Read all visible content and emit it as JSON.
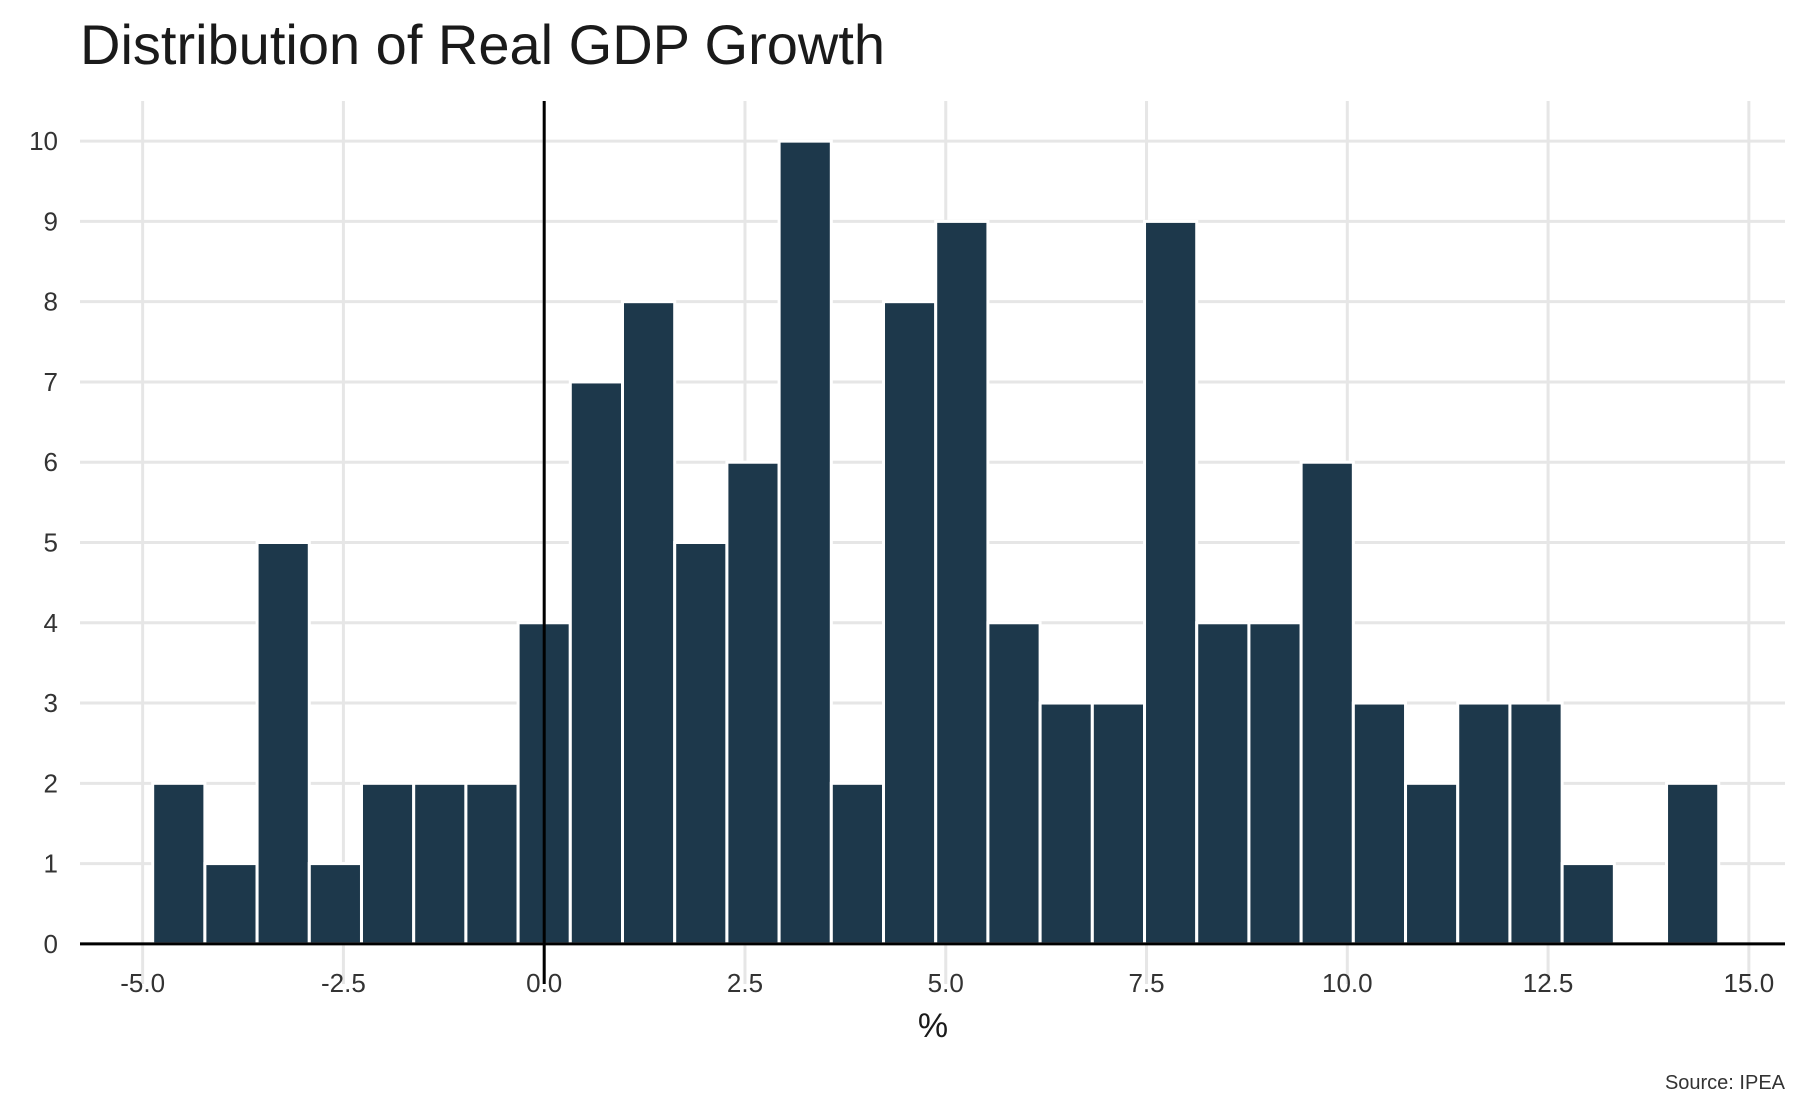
{
  "chart_data": {
    "type": "bar",
    "title": "Distribution of Real GDP Growth",
    "xlabel": "%",
    "ylabel": "",
    "caption": "Source: IPEA",
    "bin_width": 0.65,
    "bins": [
      {
        "x": -4.55,
        "count": 2
      },
      {
        "x": -3.9,
        "count": 1
      },
      {
        "x": -3.25,
        "count": 5
      },
      {
        "x": -2.6,
        "count": 1
      },
      {
        "x": -1.95,
        "count": 2
      },
      {
        "x": -1.3,
        "count": 2
      },
      {
        "x": -0.65,
        "count": 2
      },
      {
        "x": 0.0,
        "count": 4
      },
      {
        "x": 0.65,
        "count": 7
      },
      {
        "x": 1.3,
        "count": 8
      },
      {
        "x": 1.95,
        "count": 5
      },
      {
        "x": 2.6,
        "count": 6
      },
      {
        "x": 3.25,
        "count": 10
      },
      {
        "x": 3.9,
        "count": 2
      },
      {
        "x": 4.55,
        "count": 8
      },
      {
        "x": 5.2,
        "count": 9
      },
      {
        "x": 5.85,
        "count": 4
      },
      {
        "x": 6.5,
        "count": 3
      },
      {
        "x": 7.15,
        "count": 3
      },
      {
        "x": 7.8,
        "count": 9
      },
      {
        "x": 8.45,
        "count": 4
      },
      {
        "x": 9.1,
        "count": 4
      },
      {
        "x": 9.75,
        "count": 6
      },
      {
        "x": 10.4,
        "count": 3
      },
      {
        "x": 11.05,
        "count": 2
      },
      {
        "x": 11.7,
        "count": 3
      },
      {
        "x": 12.35,
        "count": 3
      },
      {
        "x": 13.0,
        "count": 1
      },
      {
        "x": 13.65,
        "count": 0
      },
      {
        "x": 14.3,
        "count": 2
      }
    ],
    "x_ticks": [
      "-5.0",
      "-2.5",
      "0.0",
      "2.5",
      "5.0",
      "7.5",
      "10.0",
      "12.5",
      "15.0"
    ],
    "y_ticks": [
      "0",
      "1",
      "2",
      "3",
      "4",
      "5",
      "6",
      "7",
      "8",
      "9",
      "10"
    ],
    "xlim": [
      -5.78,
      15.45
    ],
    "ylim": [
      -0.5,
      10.5
    ],
    "reference_line_x": 0,
    "reference_line_y": 0,
    "grid": true,
    "legend": "none",
    "colors": {
      "bar_fill": "#1d384b",
      "bar_outline": "#ffffff",
      "grid": "#e6e6e6",
      "axis_line": "#000000"
    }
  }
}
